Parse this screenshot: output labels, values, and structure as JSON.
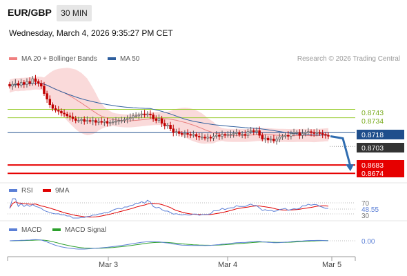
{
  "header": {
    "pair": "EUR/GBP",
    "timeframe": "30 MIN",
    "datetime": "Wednesday, March 4, 2026 9:35:27 PM CET"
  },
  "credit": "Research © 2026 Trading Central",
  "legend": {
    "main": [
      {
        "label": "MA 20 + Bollinger Bands",
        "color": "#f08080"
      },
      {
        "label": "MA 50",
        "color": "#2f5f9e"
      }
    ],
    "rsi": [
      {
        "label": "RSI",
        "color": "#5b7fd6"
      },
      {
        "label": "9MA",
        "color": "#e00000"
      }
    ],
    "macd": [
      {
        "label": "MACD",
        "color": "#5b7fd6"
      },
      {
        "label": "MACD Signal",
        "color": "#2ca02c"
      }
    ]
  },
  "colors": {
    "up": "#d9d9d9",
    "down": "#c00000",
    "green_level": "#9acd32",
    "blue_level": "#1f4e8c",
    "red_level": "#e60000",
    "current": "#333333",
    "arrow": "#2f6cb0",
    "bb_fill": "#f9d6d6"
  },
  "chart_data": [
    {
      "type": "candlestick",
      "title": "EUR/GBP 30 MIN",
      "x_ticks": [
        "Mar 3",
        "Mar 4",
        "Mar 5"
      ],
      "ylim": [
        0.8666,
        0.8785
      ],
      "indicators": [
        "MA 20 + Bollinger Bands",
        "MA 50"
      ],
      "closes": [
        0.8768,
        0.877,
        0.8771,
        0.8769,
        0.8772,
        0.877,
        0.8773,
        0.8771,
        0.8776,
        0.8773,
        0.8771,
        0.8768,
        0.876,
        0.8754,
        0.8748,
        0.8744,
        0.8742,
        0.8741,
        0.8739,
        0.8738,
        0.8736,
        0.8735,
        0.8733,
        0.8731,
        0.8731,
        0.8732,
        0.873,
        0.8731,
        0.873,
        0.8731,
        0.8729,
        0.873,
        0.8729,
        0.873,
        0.8728,
        0.8729,
        0.873,
        0.873,
        0.8731,
        0.8731,
        0.8732,
        0.8733,
        0.8734,
        0.8736,
        0.8736,
        0.8737,
        0.8738,
        0.8737,
        0.8738,
        0.8737,
        0.8733,
        0.8731,
        0.8733,
        0.8728,
        0.8725,
        0.8726,
        0.8722,
        0.8718,
        0.8719,
        0.8717,
        0.8716,
        0.8717,
        0.8716,
        0.8715,
        0.8716,
        0.8714,
        0.8713,
        0.8713,
        0.8712,
        0.8713,
        0.8712,
        0.8714,
        0.8715,
        0.8714,
        0.8716,
        0.8715,
        0.8716,
        0.8716,
        0.8717,
        0.8718,
        0.8716,
        0.8716,
        0.8715,
        0.8719,
        0.872,
        0.8719,
        0.872,
        0.8715,
        0.8711,
        0.8712,
        0.871,
        0.8711,
        0.8709,
        0.8711,
        0.8713,
        0.8714,
        0.8715,
        0.8714,
        0.8717,
        0.8718,
        0.8718,
        0.8715,
        0.8717,
        0.8718,
        0.8719,
        0.8718,
        0.8717,
        0.8718,
        0.8717,
        0.8716,
        0.8715,
        0.8714
      ],
      "levels": {
        "resistance": [
          0.8743,
          0.8734
        ],
        "pivot": 0.8718,
        "current": 0.8703,
        "support": [
          0.8683,
          0.8674
        ]
      }
    },
    {
      "type": "line",
      "title": "RSI",
      "series": [
        {
          "name": "RSI"
        },
        {
          "name": "9MA"
        }
      ],
      "levels": [
        70,
        30
      ],
      "value": 48.55
    },
    {
      "type": "line",
      "title": "MACD",
      "series": [
        {
          "name": "MACD"
        },
        {
          "name": "MACD Signal"
        }
      ],
      "levels": [
        0
      ],
      "value": "0.00"
    }
  ],
  "price_tags": {
    "g1": "0.8743",
    "g2": "0.8734",
    "pivot": "0.8718",
    "current": "0.8703",
    "s1": "0.8683",
    "s2": "0.8674"
  },
  "rsi_tags": {
    "upper": "70",
    "value": "48.55",
    "lower": "30"
  },
  "macd_tags": {
    "zero": "0.00"
  }
}
